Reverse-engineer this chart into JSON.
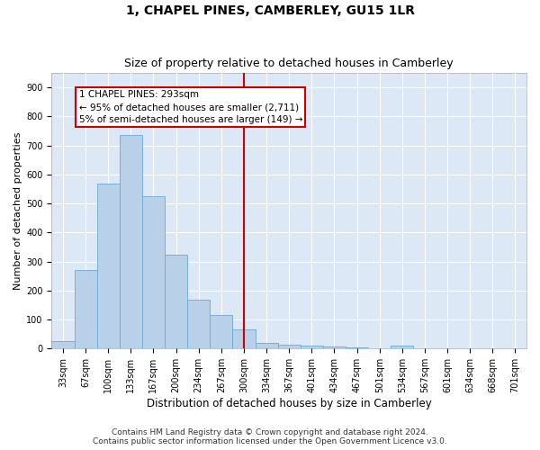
{
  "title": "1, CHAPEL PINES, CAMBERLEY, GU15 1LR",
  "subtitle": "Size of property relative to detached houses in Camberley",
  "xlabel": "Distribution of detached houses by size in Camberley",
  "ylabel": "Number of detached properties",
  "bar_labels": [
    "33sqm",
    "67sqm",
    "100sqm",
    "133sqm",
    "167sqm",
    "200sqm",
    "234sqm",
    "267sqm",
    "300sqm",
    "334sqm",
    "367sqm",
    "401sqm",
    "434sqm",
    "467sqm",
    "501sqm",
    "534sqm",
    "567sqm",
    "601sqm",
    "634sqm",
    "668sqm",
    "701sqm"
  ],
  "bar_values": [
    25,
    270,
    570,
    735,
    525,
    325,
    170,
    115,
    65,
    20,
    15,
    10,
    8,
    5,
    0,
    10,
    0,
    0,
    0,
    0,
    0
  ],
  "bar_color": "#b8d0e8",
  "bar_edge_color": "#6aaad4",
  "bg_color": "#dce8f5",
  "grid_color": "#ffffff",
  "vline_color": "#cc0000",
  "annotation_box_text": "1 CHAPEL PINES: 293sqm\n← 95% of detached houses are smaller (2,711)\n5% of semi-detached houses are larger (149) →",
  "annotation_box_edge_color": "#cc0000",
  "annotation_box_bg": "#ffffff",
  "ylim": [
    0,
    950
  ],
  "yticks": [
    0,
    100,
    200,
    300,
    400,
    500,
    600,
    700,
    800,
    900
  ],
  "footnote1": "Contains HM Land Registry data © Crown copyright and database right 2024.",
  "footnote2": "Contains public sector information licensed under the Open Government Licence v3.0.",
  "title_fontsize": 10,
  "subtitle_fontsize": 9,
  "ylabel_fontsize": 8,
  "xlabel_fontsize": 8.5,
  "tick_fontsize": 7,
  "footnote_fontsize": 6.5,
  "annotation_fontsize": 7.5,
  "vline_pos": 8.0
}
